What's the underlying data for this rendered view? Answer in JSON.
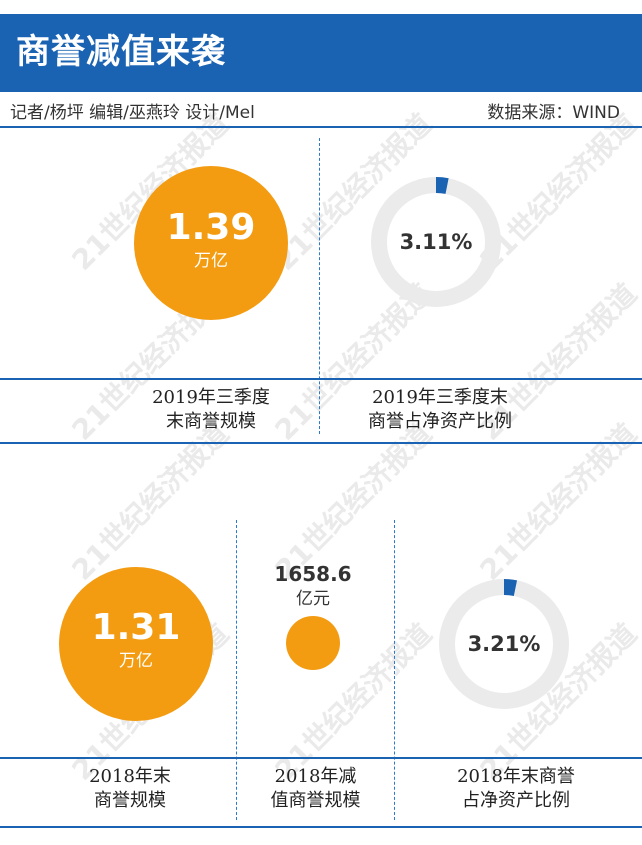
{
  "header": {
    "title": "商誉减值来袭",
    "credits": "记者/杨坪  编辑/巫燕玲  设计/Mel",
    "source": "数据来源：WIND"
  },
  "watermark": "21世纪经济报道",
  "colors": {
    "header_bg": "#1a62b2",
    "circle": "#f39c12",
    "ring_track": "#ebebeb",
    "ring_value": "#1a62b2"
  },
  "section_2019": {
    "scale": {
      "value": "1.39",
      "unit": "万亿",
      "label_line1": "2019年三季度",
      "label_line2": "末商誉规模"
    },
    "ratio": {
      "value": "3.11%",
      "percent": 3.11,
      "label_line1": "2019年三季度末",
      "label_line2": "商誉占净资产比例"
    }
  },
  "section_2018": {
    "scale": {
      "value": "1.31",
      "unit": "万亿",
      "label_line1": "2018年末",
      "label_line2": "商誉规模"
    },
    "impairment": {
      "value": "1658.6",
      "unit": "亿元",
      "label_line1": "2018年减",
      "label_line2": "值商誉规模"
    },
    "ratio": {
      "value": "3.21%",
      "percent": 3.21,
      "label_line1": "2018年末商誉",
      "label_line2": "占净资产比例"
    }
  },
  "chart_data": [
    {
      "type": "bubble",
      "label": "2019年三季度末商誉规模",
      "value": 1.39,
      "unit": "万亿"
    },
    {
      "type": "pie",
      "label": "2019年三季度末商誉占净资产比例",
      "value": 3.11,
      "unit": "%"
    },
    {
      "type": "bubble",
      "label": "2018年末商誉规模",
      "value": 1.31,
      "unit": "万亿"
    },
    {
      "type": "bubble",
      "label": "2018年减值商誉规模",
      "value": 1658.6,
      "unit": "亿元"
    },
    {
      "type": "pie",
      "label": "2018年末商誉占净资产比例",
      "value": 3.21,
      "unit": "%"
    }
  ]
}
